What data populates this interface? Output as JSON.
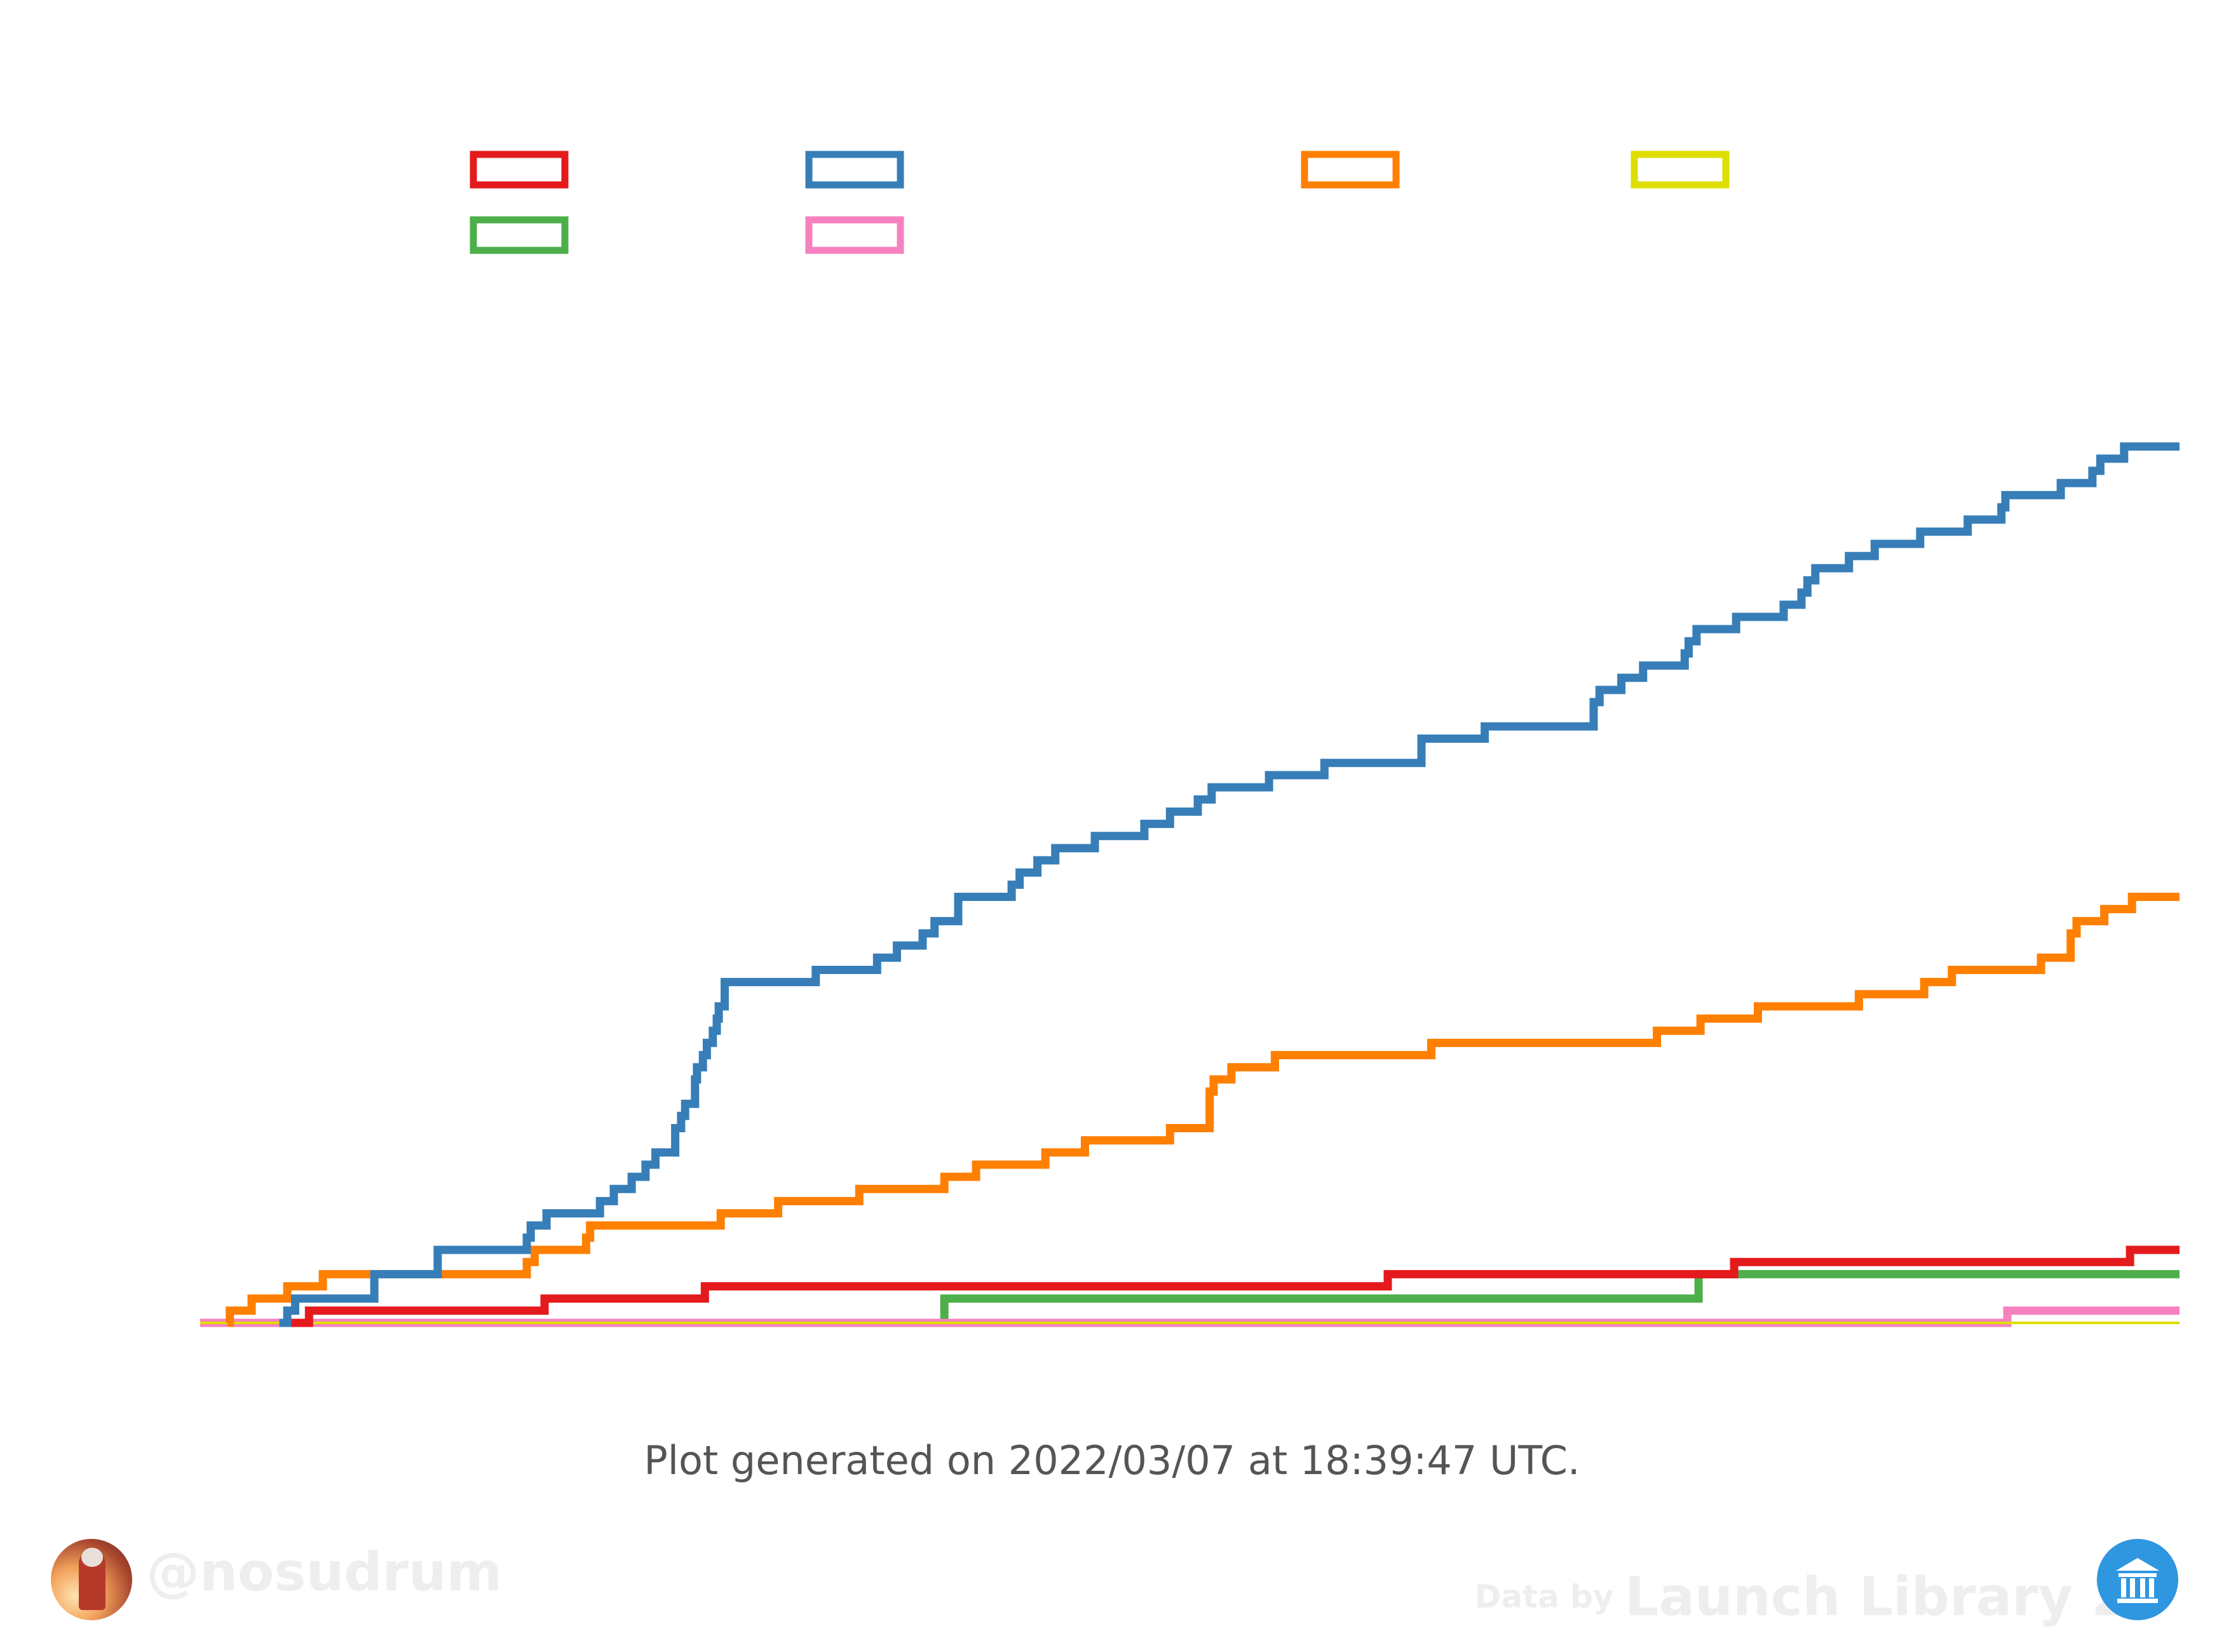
{
  "chart_data": {
    "type": "line",
    "step": true,
    "title": "",
    "xlabel": "",
    "ylabel": "",
    "xlim": [
      0,
      1000
    ],
    "ylim": [
      0,
      83
    ],
    "grid": false,
    "legend_placement": "top",
    "series": [
      {
        "color": "#e41a1c",
        "steps": [
          [
            41,
            0
          ],
          [
            55,
            1
          ],
          [
            174,
            2
          ],
          [
            255,
            3
          ],
          [
            600,
            4
          ],
          [
            775,
            5
          ],
          [
            975,
            6
          ],
          [
            1000,
            6
          ]
        ]
      },
      {
        "color": "#377eb8",
        "steps": [
          [
            40,
            0
          ],
          [
            44,
            1
          ],
          [
            48,
            2
          ],
          [
            88,
            4
          ],
          [
            120,
            6
          ],
          [
            165,
            7
          ],
          [
            167,
            8
          ],
          [
            175,
            9
          ],
          [
            202,
            10
          ],
          [
            209,
            11
          ],
          [
            218,
            12
          ],
          [
            225,
            13
          ],
          [
            230,
            14
          ],
          [
            240,
            16
          ],
          [
            243,
            17
          ],
          [
            245,
            18
          ],
          [
            250,
            20
          ],
          [
            251,
            21
          ],
          [
            254,
            22
          ],
          [
            256,
            23
          ],
          [
            259,
            24
          ],
          [
            261,
            25
          ],
          [
            262,
            26
          ],
          [
            265,
            28
          ],
          [
            311,
            29
          ],
          [
            342,
            30
          ],
          [
            352,
            31
          ],
          [
            365,
            32
          ],
          [
            371,
            33
          ],
          [
            383,
            35
          ],
          [
            410,
            36
          ],
          [
            414,
            37
          ],
          [
            423,
            38
          ],
          [
            432,
            39
          ],
          [
            452,
            40
          ],
          [
            477,
            41
          ],
          [
            490,
            42
          ],
          [
            504,
            43
          ],
          [
            511,
            44
          ],
          [
            540,
            45
          ],
          [
            568,
            46
          ],
          [
            617,
            48
          ],
          [
            649,
            49
          ],
          [
            704,
            51
          ],
          [
            707,
            52
          ],
          [
            718,
            53
          ],
          [
            729,
            54
          ],
          [
            750,
            55
          ],
          [
            752,
            56
          ],
          [
            756,
            57
          ],
          [
            776,
            58
          ],
          [
            800,
            59
          ],
          [
            809,
            60
          ],
          [
            812,
            61
          ],
          [
            816,
            62
          ],
          [
            833,
            63
          ],
          [
            846,
            64
          ],
          [
            869,
            65
          ],
          [
            893,
            66
          ],
          [
            910,
            67
          ],
          [
            912,
            68
          ],
          [
            940,
            69
          ],
          [
            956,
            70
          ],
          [
            960,
            71
          ],
          [
            972,
            72
          ],
          [
            1000,
            72
          ]
        ]
      },
      {
        "color": "#ff7f00",
        "steps": [
          [
            14,
            0
          ],
          [
            15,
            1
          ],
          [
            26,
            2
          ],
          [
            44,
            3
          ],
          [
            62,
            4
          ],
          [
            165,
            5
          ],
          [
            169,
            6
          ],
          [
            195,
            7
          ],
          [
            197,
            8
          ],
          [
            263,
            9
          ],
          [
            292,
            10
          ],
          [
            333,
            11
          ],
          [
            376,
            12
          ],
          [
            392,
            13
          ],
          [
            427,
            14
          ],
          [
            447,
            15
          ],
          [
            490,
            16
          ],
          [
            510,
            19
          ],
          [
            512,
            20
          ],
          [
            521,
            21
          ],
          [
            543,
            22
          ],
          [
            622,
            23
          ],
          [
            736,
            24
          ],
          [
            758,
            25
          ],
          [
            787,
            26
          ],
          [
            838,
            27
          ],
          [
            871,
            28
          ],
          [
            885,
            29
          ],
          [
            930,
            30
          ],
          [
            945,
            32
          ],
          [
            948,
            33
          ],
          [
            962,
            34
          ],
          [
            976,
            35
          ],
          [
            1000,
            35
          ]
        ]
      },
      {
        "color": "#dede00",
        "steps": [
          [
            0,
            0
          ],
          [
            1000,
            0
          ]
        ]
      },
      {
        "color": "#4daf4a",
        "steps": [
          [
            0,
            0
          ],
          [
            376,
            2
          ],
          [
            757,
            4
          ],
          [
            1000,
            4
          ]
        ]
      },
      {
        "color": "#f781bf",
        "steps": [
          [
            0,
            0
          ],
          [
            913,
            1
          ],
          [
            1000,
            1
          ]
        ]
      }
    ]
  },
  "footer": {
    "generated_note": "Plot generated on 2022/03/07 at 18:39:47 UTC.",
    "handle": "@nosudrum",
    "data_by_prefix": "Data by",
    "data_by_source": "Launch Library 2"
  }
}
